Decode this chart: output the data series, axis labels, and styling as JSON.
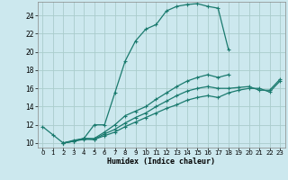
{
  "xlabel": "Humidex (Indice chaleur)",
  "ylabel": "",
  "bg_color": "#cce8ee",
  "grid_color": "#aacccc",
  "line_color": "#1a7a6e",
  "xlim": [
    -0.5,
    23.5
  ],
  "ylim": [
    9.5,
    25.5
  ],
  "xticks": [
    0,
    1,
    2,
    3,
    4,
    5,
    6,
    7,
    8,
    9,
    10,
    11,
    12,
    13,
    14,
    15,
    16,
    17,
    18,
    19,
    20,
    21,
    22,
    23
  ],
  "yticks": [
    10,
    12,
    14,
    16,
    18,
    20,
    22,
    24
  ],
  "series": [
    {
      "x": [
        0,
        1,
        2,
        3,
        4,
        5,
        6,
        7,
        8,
        9,
        10,
        11,
        12,
        13,
        14,
        15,
        16,
        17,
        18
      ],
      "y": [
        11.8,
        10.9,
        10.0,
        10.3,
        10.5,
        12.0,
        12.0,
        15.5,
        19.0,
        21.2,
        22.5,
        23.0,
        24.5,
        25.0,
        25.2,
        25.3,
        25.0,
        24.8,
        20.3
      ]
    },
    {
      "x": [
        2,
        3,
        4,
        5,
        6,
        7,
        8,
        9,
        10,
        11,
        12,
        13,
        14,
        15,
        16,
        17,
        18
      ],
      "y": [
        10.0,
        10.2,
        10.5,
        10.5,
        11.2,
        12.0,
        13.0,
        13.5,
        14.0,
        14.8,
        15.5,
        16.2,
        16.8,
        17.2,
        17.5,
        17.2,
        17.5
      ]
    },
    {
      "x": [
        2,
        3,
        4,
        5,
        6,
        7,
        8,
        9,
        10,
        11,
        12,
        13,
        14,
        15,
        16,
        17,
        18,
        19,
        20,
        21,
        22,
        23
      ],
      "y": [
        10.0,
        10.2,
        10.5,
        10.4,
        11.0,
        11.5,
        12.2,
        12.8,
        13.3,
        14.0,
        14.6,
        15.2,
        15.7,
        16.0,
        16.2,
        16.0,
        16.0,
        16.1,
        16.2,
        15.8,
        15.8,
        17.0
      ]
    },
    {
      "x": [
        2,
        3,
        4,
        5,
        6,
        7,
        8,
        9,
        10,
        11,
        12,
        13,
        14,
        15,
        16,
        17,
        18,
        19,
        20,
        21,
        22,
        23
      ],
      "y": [
        10.0,
        10.2,
        10.4,
        10.4,
        10.8,
        11.2,
        11.8,
        12.3,
        12.8,
        13.3,
        13.8,
        14.2,
        14.7,
        15.0,
        15.2,
        15.0,
        15.5,
        15.8,
        16.0,
        16.0,
        15.6,
        16.8
      ]
    }
  ]
}
